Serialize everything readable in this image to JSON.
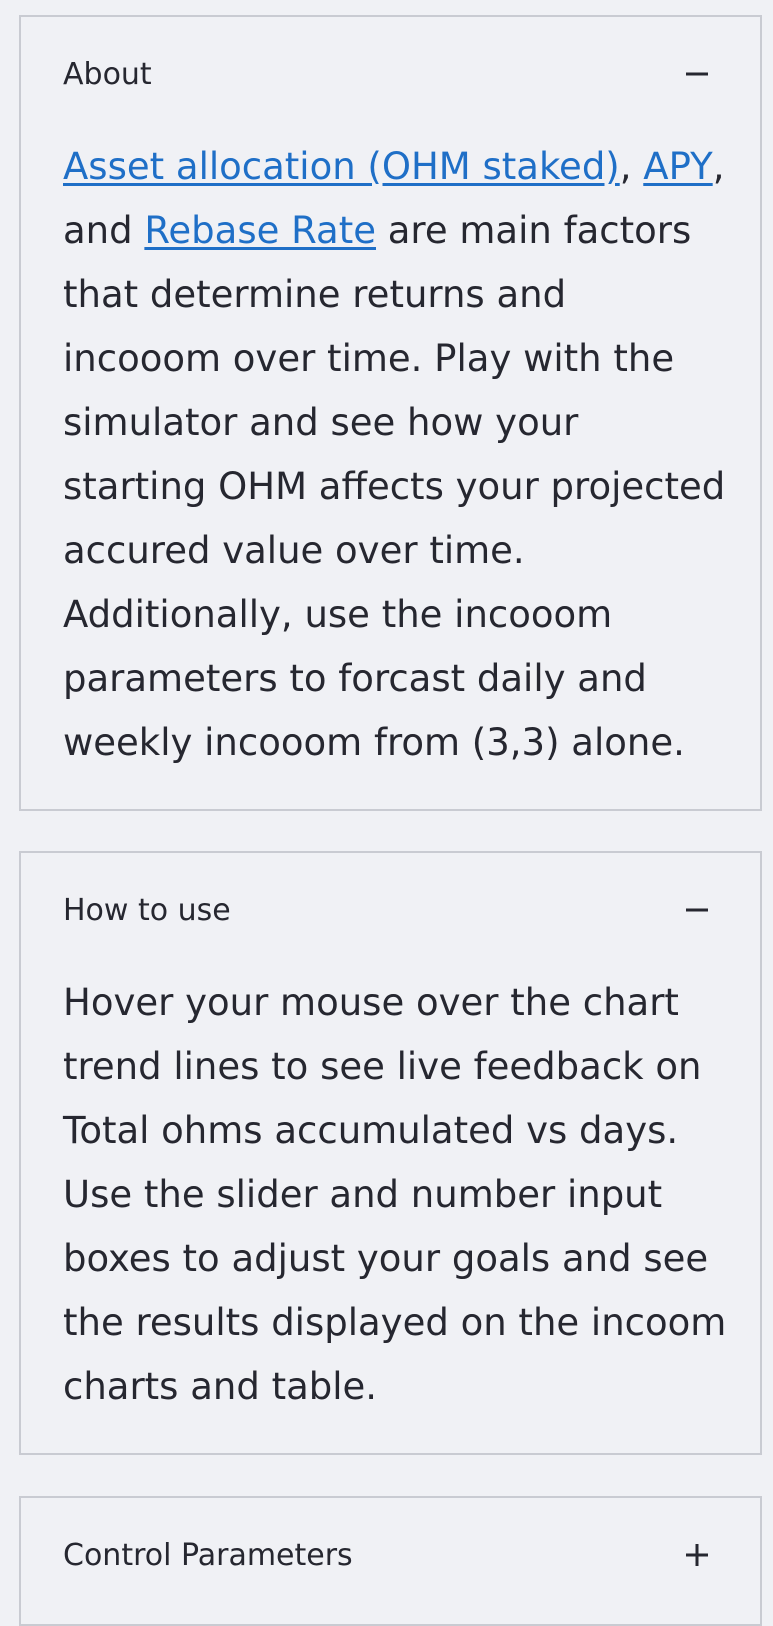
{
  "about": {
    "title": "About",
    "toggle_icon": "minus-icon",
    "links": {
      "asset_allocation": "Asset allocation (OHM staked)",
      "apy": "APY",
      "rebase_rate": "Rebase Rate"
    },
    "text": {
      "sep1": ", ",
      "sep2": ",",
      "and": "and ",
      "rest": " are main factors that determine returns and incooom over time. Play with the simulator and see how your starting OHM affects your projected accured value over time. Additionally, use the incooom parameters to forcast daily and weekly incooom from (3,3) alone."
    }
  },
  "how_to_use": {
    "title": "How to use",
    "toggle_icon": "minus-icon",
    "text": "Hover your mouse over the chart trend lines to see live feedback on Total ohms accumulated vs days. Use the slider and number input boxes to adjust your goals and see the results displayed on the incoom charts and table."
  },
  "control_parameters": {
    "title": "Control Parameters",
    "toggle_icon": "plus-icon"
  },
  "colors": {
    "background": "#f0f1f5",
    "border": "#c9cbd2",
    "text": "#262730",
    "link": "#1f6fc7"
  }
}
